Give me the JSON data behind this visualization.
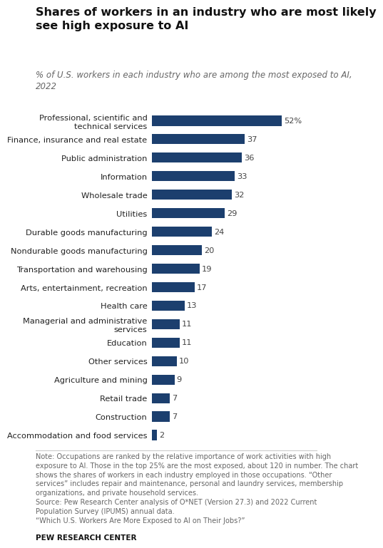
{
  "title": "Shares of workers in an industry who are most likely\nsee high exposure to AI",
  "subtitle": "% of U.S. workers in each industry who are among the most exposed to AI,\n2022",
  "categories": [
    "Professional, scientific and\ntechnical services",
    "Finance, insurance and real estate",
    "Public administration",
    "Information",
    "Wholesale trade",
    "Utilities",
    "Durable goods manufacturing",
    "Nondurable goods manufacturing",
    "Transportation and warehousing",
    "Arts, entertainment, recreation",
    "Health care",
    "Managerial and administrative\nservices",
    "Education",
    "Other services",
    "Agriculture and mining",
    "Retail trade",
    "Construction",
    "Accommodation and food services"
  ],
  "values": [
    52,
    37,
    36,
    33,
    32,
    29,
    24,
    20,
    19,
    17,
    13,
    11,
    11,
    10,
    9,
    7,
    7,
    2
  ],
  "value_labels": [
    "52%",
    "37",
    "36",
    "33",
    "32",
    "29",
    "24",
    "20",
    "19",
    "17",
    "13",
    "11",
    "11",
    "10",
    "9",
    "7",
    "7",
    "2"
  ],
  "bar_color": "#1c3f6e",
  "background_color": "#ffffff",
  "title_fontsize": 11.5,
  "subtitle_fontsize": 8.5,
  "label_fontsize": 8.2,
  "value_fontsize": 8.2,
  "note_text": "Note: Occupations are ranked by the relative importance of work activities with high\nexposure to AI. Those in the top 25% are the most exposed, about 120 in number. The chart\nshows the shares of workers in each industry employed in those occupations. “Other\nservices” includes repair and maintenance, personal and laundry services, membership\norganizations, and private household services.\nSource: Pew Research Center analysis of O*NET (Version 27.3) and 2022 Current\nPopulation Survey (IPUMS) annual data.\n“Which U.S. Workers Are More Exposed to AI on Their Jobs?”",
  "source_bold": "PEW RESEARCH CENTER",
  "xlim": [
    0,
    60
  ]
}
